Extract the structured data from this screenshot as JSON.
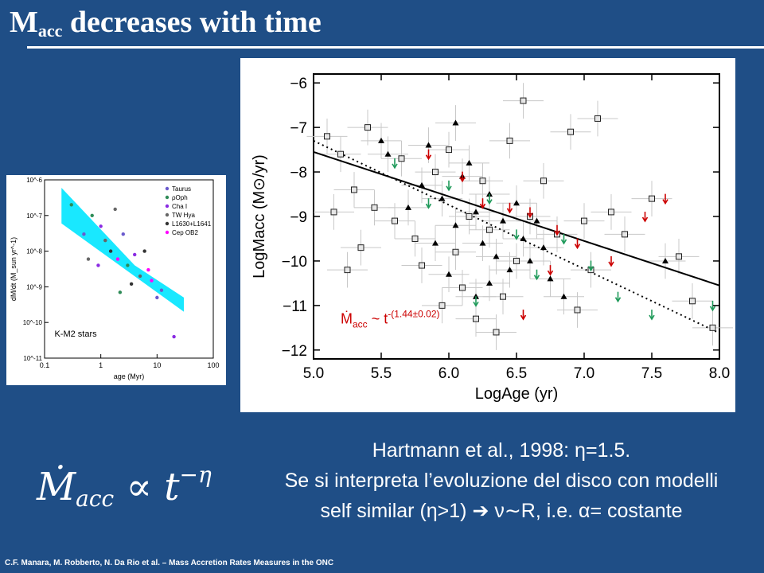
{
  "slide": {
    "title_main": "M",
    "title_sub": "acc",
    "title_rest": " decreases with time"
  },
  "caption": {
    "line1": "Hartmann et al., 1998:  η=1.5.",
    "line2": "Se si interpreta l’evoluzione del disco con modelli",
    "line3": "self similar (η>1)  ➔  ν∼R, i.e. α= costante"
  },
  "formula": {
    "symbol": "Ṁ",
    "sub": "acc",
    "rel": "∝",
    "var": "t",
    "exp": "−η"
  },
  "footer": {
    "text": "C.F. Manara, M. Robberto, N. Da Rio et al. – Mass Accretion Rates Measures in the ONC"
  },
  "colors": {
    "background": "#1f4e86",
    "fit_band": "#00e5ff",
    "limit_red": "#cc0000",
    "limit_green": "#1f9a5a"
  },
  "chart_data": [
    {
      "type": "scatter",
      "title": "",
      "xlabel": "LogAge (yr)",
      "ylabel": "LogMacc (M⊙/yr)",
      "x_ticks": [
        "5.0",
        "5.5",
        "6.0",
        "6.5",
        "7.0",
        "7.5",
        "8.0"
      ],
      "y_ticks": [
        "−6",
        "−7",
        "−8",
        "−9",
        "−10",
        "−11",
        "−12"
      ],
      "xlim": [
        5.0,
        8.0
      ],
      "ylim": [
        -12.2,
        -5.8
      ],
      "annotation": {
        "prefix": "Ṁ",
        "sub": "acc",
        "text": " ~ t",
        "sup": "-(1.44±0.02)"
      },
      "fit_solid": [
        [
          5.0,
          -7.55
        ],
        [
          8.0,
          -10.55
        ]
      ],
      "fit_dotted": [
        [
          5.0,
          -7.3
        ],
        [
          8.0,
          -11.62
        ]
      ],
      "points_triangle": [
        [
          5.55,
          -7.6
        ],
        [
          5.8,
          -8.3
        ],
        [
          5.95,
          -8.6
        ],
        [
          6.05,
          -9.2
        ],
        [
          6.1,
          -8.1
        ],
        [
          6.2,
          -8.9
        ],
        [
          6.25,
          -9.6
        ],
        [
          6.3,
          -8.5
        ],
        [
          6.35,
          -9.9
        ],
        [
          6.4,
          -9.1
        ],
        [
          6.45,
          -10.2
        ],
        [
          6.5,
          -8.7
        ],
        [
          6.55,
          -9.5
        ],
        [
          6.6,
          -10.0
        ],
        [
          6.7,
          -9.7
        ],
        [
          6.75,
          -10.4
        ],
        [
          6.85,
          -10.8
        ],
        [
          5.85,
          -7.4
        ],
        [
          5.7,
          -8.8
        ],
        [
          6.0,
          -10.3
        ],
        [
          6.15,
          -7.8
        ],
        [
          6.3,
          -10.5
        ],
        [
          5.9,
          -9.6
        ],
        [
          6.05,
          -6.9
        ],
        [
          6.2,
          -10.8
        ],
        [
          5.5,
          -7.3
        ],
        [
          6.65,
          -9.1
        ],
        [
          7.6,
          -10.0
        ]
      ],
      "points_square": [
        [
          5.1,
          -7.2
        ],
        [
          5.2,
          -7.6
        ],
        [
          5.3,
          -8.4
        ],
        [
          5.4,
          -7.0
        ],
        [
          5.45,
          -8.8
        ],
        [
          5.6,
          -9.1
        ],
        [
          5.65,
          -7.7
        ],
        [
          5.75,
          -9.5
        ],
        [
          5.8,
          -10.1
        ],
        [
          5.9,
          -8.0
        ],
        [
          6.0,
          -7.5
        ],
        [
          6.05,
          -9.8
        ],
        [
          6.1,
          -10.6
        ],
        [
          6.15,
          -9.0
        ],
        [
          6.25,
          -8.2
        ],
        [
          6.3,
          -9.3
        ],
        [
          6.4,
          -10.8
        ],
        [
          6.45,
          -7.3
        ],
        [
          6.5,
          -10.0
        ],
        [
          6.6,
          -9.0
        ],
        [
          6.7,
          -8.2
        ],
        [
          6.8,
          -9.4
        ],
        [
          6.9,
          -7.1
        ],
        [
          7.0,
          -9.1
        ],
        [
          7.05,
          -10.2
        ],
        [
          7.2,
          -8.9
        ],
        [
          7.3,
          -9.4
        ],
        [
          7.5,
          -8.6
        ],
        [
          7.7,
          -9.9
        ],
        [
          7.8,
          -10.9
        ],
        [
          5.25,
          -10.2
        ],
        [
          5.35,
          -9.7
        ],
        [
          6.95,
          -11.1
        ],
        [
          6.2,
          -11.3
        ],
        [
          5.95,
          -11.0
        ],
        [
          7.95,
          -11.5
        ],
        [
          6.55,
          -6.4
        ],
        [
          7.1,
          -6.8
        ],
        [
          5.15,
          -8.9
        ],
        [
          6.35,
          -11.6
        ]
      ],
      "upper_limits_red": [
        [
          5.85,
          -7.6
        ],
        [
          6.1,
          -8.1
        ],
        [
          6.25,
          -8.7
        ],
        [
          6.45,
          -8.8
        ],
        [
          6.6,
          -8.9
        ],
        [
          6.8,
          -9.3
        ],
        [
          6.95,
          -9.6
        ],
        [
          7.2,
          -10.0
        ],
        [
          7.45,
          -9.0
        ],
        [
          7.6,
          -8.6
        ],
        [
          6.75,
          -10.2
        ],
        [
          6.55,
          -11.2
        ]
      ],
      "upper_limits_green": [
        [
          5.6,
          -7.8
        ],
        [
          5.85,
          -8.7
        ],
        [
          6.0,
          -8.3
        ],
        [
          6.3,
          -8.6
        ],
        [
          6.5,
          -9.4
        ],
        [
          6.65,
          -10.3
        ],
        [
          6.85,
          -9.5
        ],
        [
          7.05,
          -10.1
        ],
        [
          7.25,
          -10.8
        ],
        [
          7.5,
          -11.2
        ],
        [
          6.2,
          -10.9
        ],
        [
          7.95,
          -11.0
        ]
      ]
    },
    {
      "type": "scatter",
      "title": "",
      "xlabel": "age (Myr)",
      "ylabel": "dM/dt (M_sun yr^-1)",
      "x_ticks": [
        "0.1",
        "1",
        "10",
        "100"
      ],
      "y_ticks": [
        "10^-6",
        "10^-7",
        "10^-8",
        "10^-9",
        "10^-10",
        "10^-11"
      ],
      "xlim": [
        0.1,
        100
      ],
      "ylim": [
        1e-11,
        1e-06
      ],
      "x_log": true,
      "y_log": true,
      "annotation": "K-M2 stars",
      "legend": [
        "Taurus",
        "ρOph",
        "Cha I",
        "TW Hya",
        "L1630+L1641",
        "Cep OB2"
      ],
      "legend_colors": [
        "#6a5acd",
        "#2e8b57",
        "#8a2be2",
        "#666666",
        "#333333",
        "#ff00ff"
      ],
      "band": [
        [
          0.2,
          6e-07
        ],
        [
          0.2,
          6e-08
        ],
        [
          30,
          2e-10
        ],
        [
          30,
          5e-10
        ],
        [
          4,
          4e-09
        ]
      ],
      "points": [
        [
          0.5,
          3e-08
        ],
        [
          0.7,
          1e-07
        ],
        [
          1.0,
          5e-08
        ],
        [
          1.2,
          2e-08
        ],
        [
          1.5,
          1e-08
        ],
        [
          2.0,
          6e-09
        ],
        [
          2.5,
          3e-08
        ],
        [
          3.0,
          4e-09
        ],
        [
          4.0,
          8e-09
        ],
        [
          5.0,
          2e-09
        ],
        [
          6.0,
          1e-08
        ],
        [
          8.0,
          1.5e-09
        ],
        [
          10.0,
          5e-10
        ],
        [
          0.3,
          2e-07
        ],
        [
          0.9,
          4e-09
        ],
        [
          1.8,
          1.5e-07
        ],
        [
          3.5,
          1.2e-09
        ],
        [
          7.0,
          3e-09
        ],
        [
          12.0,
          8e-10
        ],
        [
          2.2,
          7e-10
        ],
        [
          20.0,
          4e-11
        ],
        [
          0.6,
          6e-09
        ]
      ]
    }
  ]
}
